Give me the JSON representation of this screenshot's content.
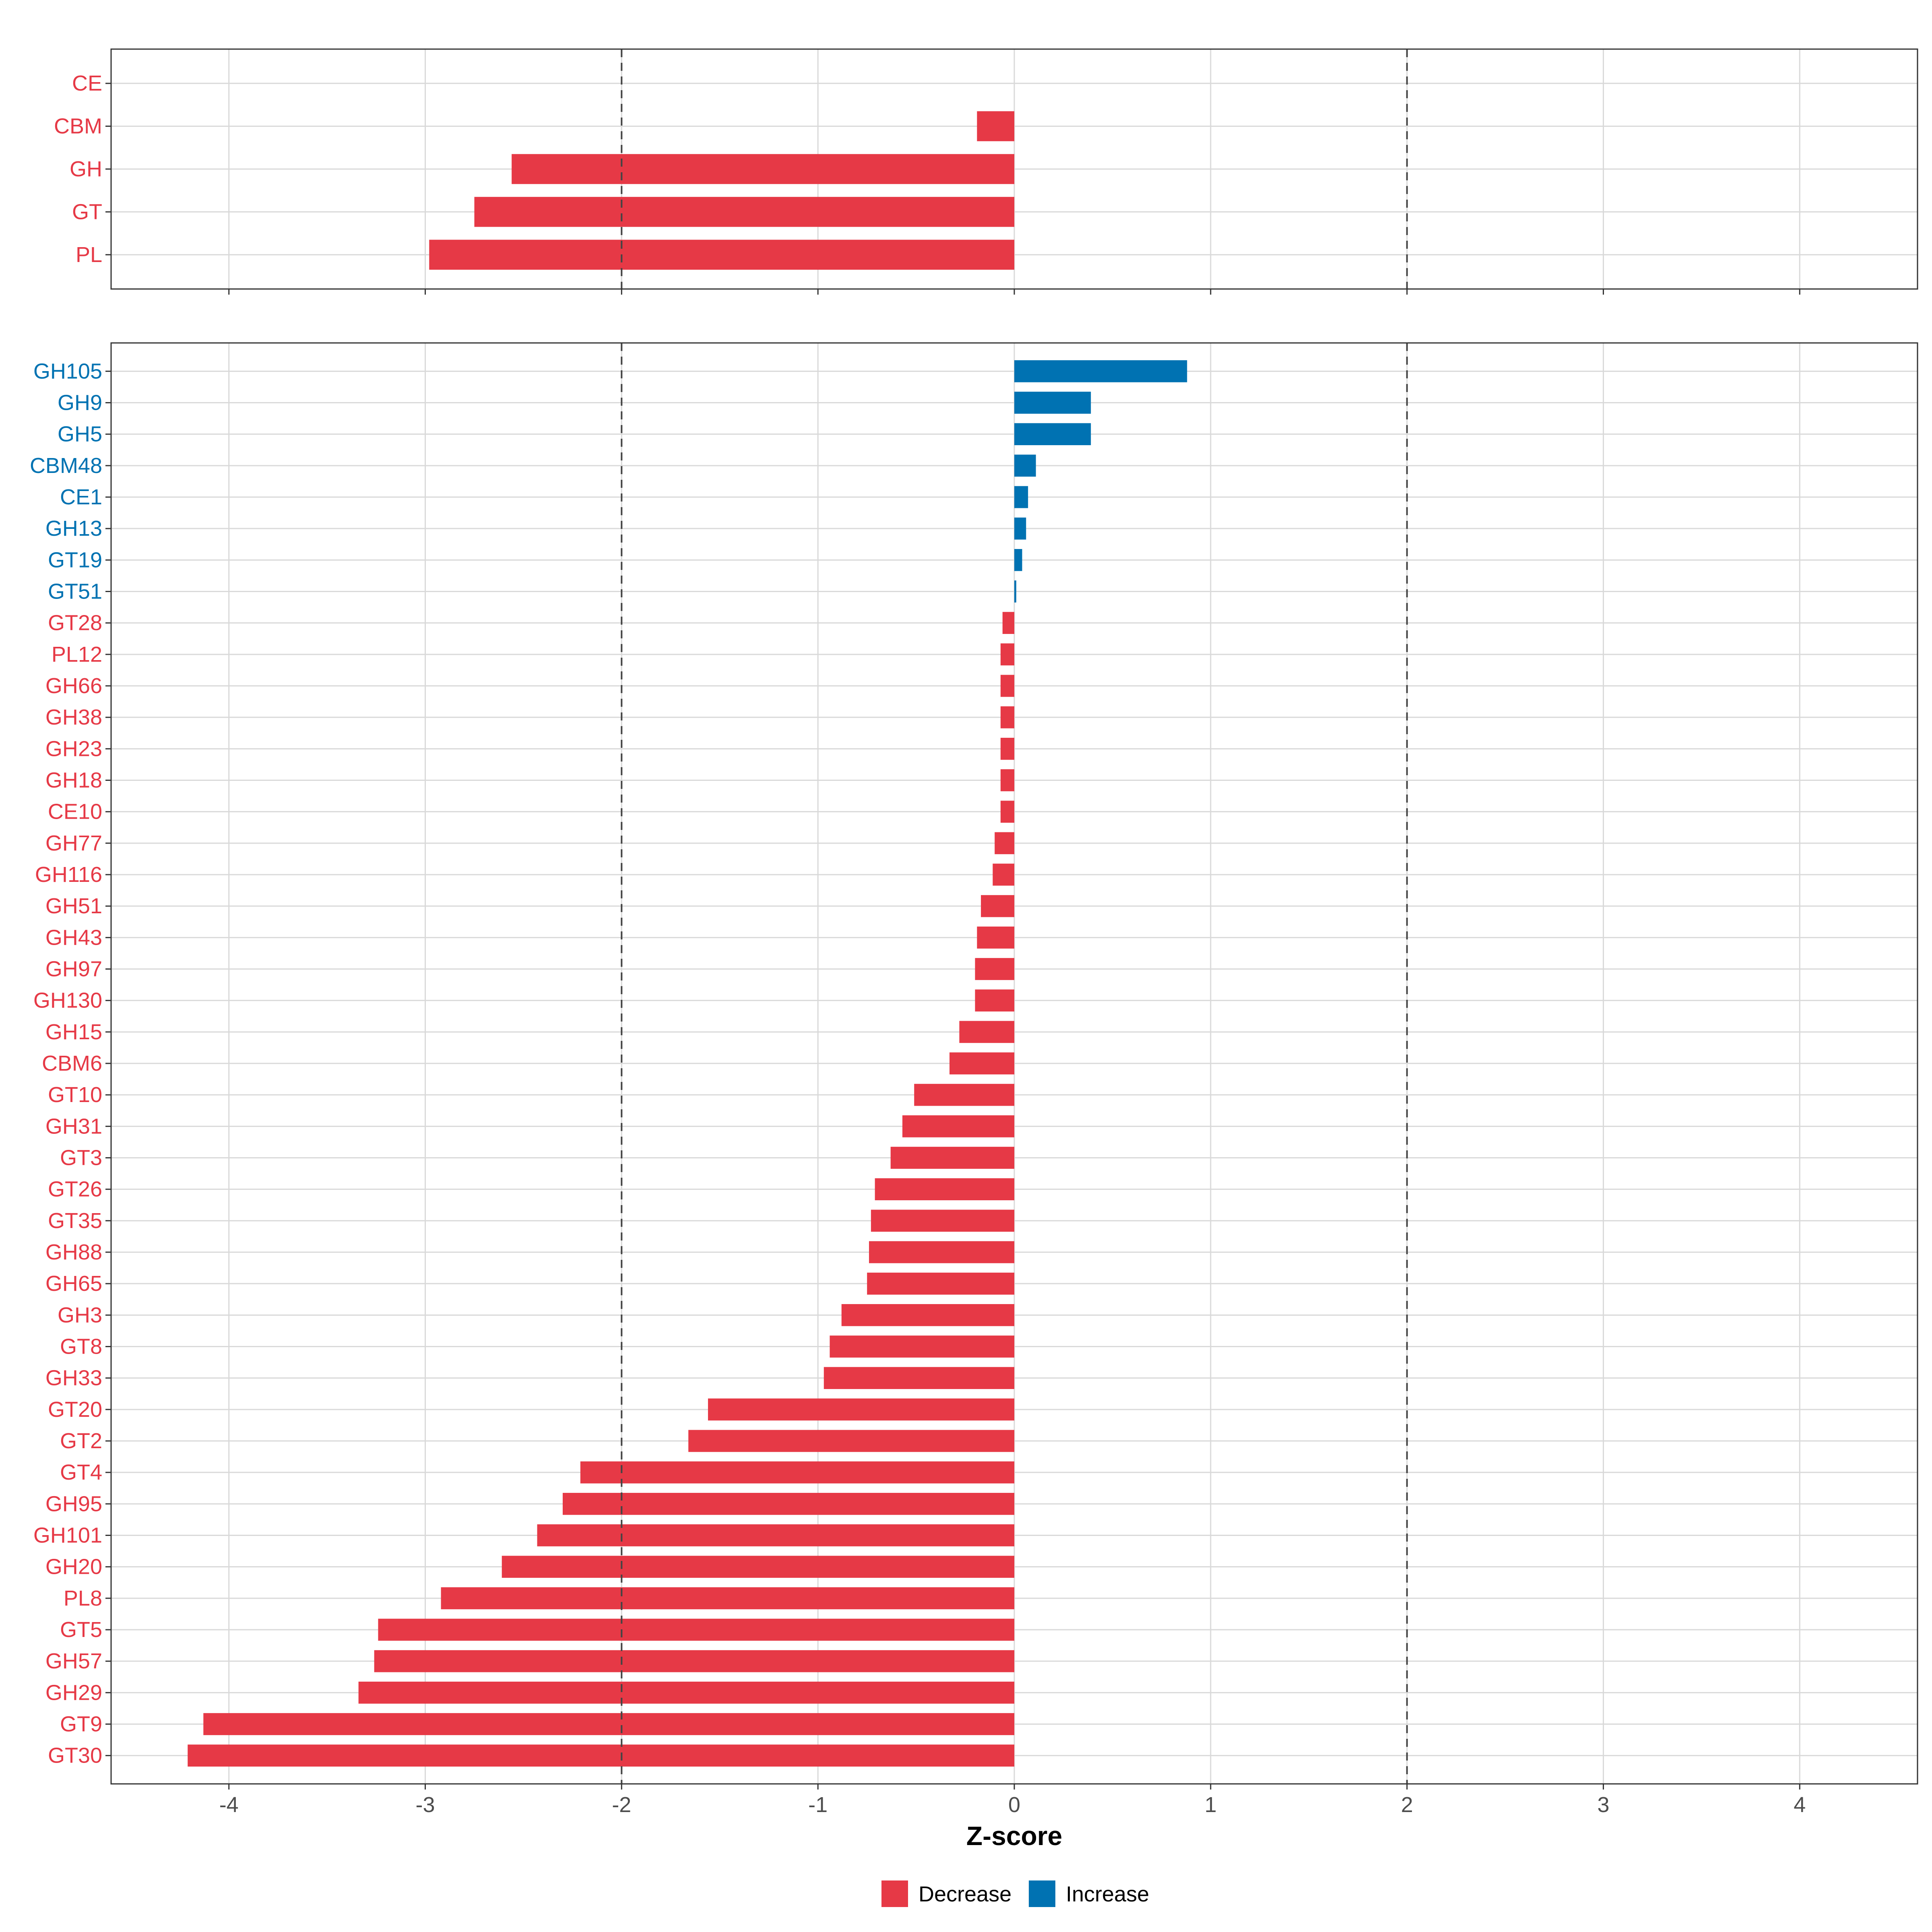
{
  "chart_data": {
    "type": "bar",
    "orientation": "horizontal",
    "xlabel": "Z-score",
    "xlim": [
      -4.6,
      4.6
    ],
    "xticks": [
      -4,
      -3,
      -2,
      -1,
      0,
      1,
      2,
      3,
      4
    ],
    "xtick_labels": [
      "-4",
      "-3",
      "-2",
      "-1",
      "0",
      "1",
      "2",
      "3",
      "4"
    ],
    "reference_lines": [
      -2,
      2
    ],
    "grid": true,
    "colors": {
      "Decrease": "#E63946",
      "Increase": "#0072B2"
    },
    "legend": {
      "position": "bottom",
      "items": [
        {
          "label": "Decrease",
          "color": "#E63946"
        },
        {
          "label": "Increase",
          "color": "#0072B2"
        }
      ]
    },
    "panels": [
      {
        "name": "classes",
        "categories": [
          "CE",
          "CBM",
          "GH",
          "GT",
          "PL"
        ],
        "values": [
          0.0,
          -0.19,
          -2.56,
          -2.75,
          -2.98
        ],
        "direction": [
          "Decrease",
          "Decrease",
          "Decrease",
          "Decrease",
          "Decrease"
        ]
      },
      {
        "name": "families",
        "categories": [
          "GH105",
          "GH9",
          "GH5",
          "CBM48",
          "CE1",
          "GH13",
          "GT19",
          "GT51",
          "GT28",
          "PL12",
          "GH66",
          "GH38",
          "GH23",
          "GH18",
          "CE10",
          "GH77",
          "GH116",
          "GH51",
          "GH43",
          "GH97",
          "GH130",
          "GH15",
          "CBM6",
          "GT10",
          "GH31",
          "GT3",
          "GT26",
          "GT35",
          "GH88",
          "GH65",
          "GH3",
          "GT8",
          "GH33",
          "GT20",
          "GT2",
          "GT4",
          "GH95",
          "GH101",
          "GH20",
          "PL8",
          "GT5",
          "GH57",
          "GH29",
          "GT9",
          "GT30"
        ],
        "values": [
          0.88,
          0.39,
          0.39,
          0.11,
          0.07,
          0.06,
          0.04,
          0.01,
          -0.06,
          -0.07,
          -0.07,
          -0.07,
          -0.07,
          -0.07,
          -0.07,
          -0.1,
          -0.11,
          -0.17,
          -0.19,
          -0.2,
          -0.2,
          -0.28,
          -0.33,
          -0.51,
          -0.57,
          -0.63,
          -0.71,
          -0.73,
          -0.74,
          -0.75,
          -0.88,
          -0.94,
          -0.97,
          -1.56,
          -1.66,
          -2.21,
          -2.3,
          -2.43,
          -2.61,
          -2.92,
          -3.24,
          -3.26,
          -3.34,
          -4.13,
          -4.21
        ],
        "direction": [
          "Increase",
          "Increase",
          "Increase",
          "Increase",
          "Increase",
          "Increase",
          "Increase",
          "Increase",
          "Decrease",
          "Decrease",
          "Decrease",
          "Decrease",
          "Decrease",
          "Decrease",
          "Decrease",
          "Decrease",
          "Decrease",
          "Decrease",
          "Decrease",
          "Decrease",
          "Decrease",
          "Decrease",
          "Decrease",
          "Decrease",
          "Decrease",
          "Decrease",
          "Decrease",
          "Decrease",
          "Decrease",
          "Decrease",
          "Decrease",
          "Decrease",
          "Decrease",
          "Decrease",
          "Decrease",
          "Decrease",
          "Decrease",
          "Decrease",
          "Decrease",
          "Decrease",
          "Decrease",
          "Decrease",
          "Decrease",
          "Decrease",
          "Decrease"
        ]
      }
    ]
  }
}
